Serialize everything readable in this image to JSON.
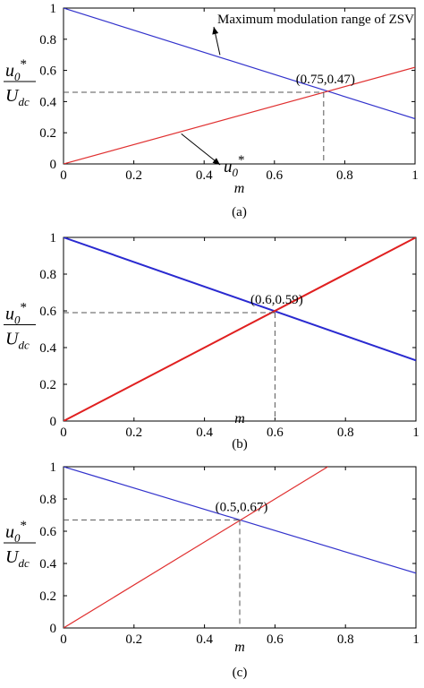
{
  "chart_data": [
    {
      "type": "line",
      "panel": "(a)",
      "xlabel": "m",
      "ylabel": {
        "numerator": "u",
        "numerator_sub": "0",
        "numerator_sup": "*",
        "denominator": "U",
        "denominator_sub": "dc"
      },
      "xlim": [
        0,
        1
      ],
      "ylim": [
        0,
        1
      ],
      "xticks": [
        "0",
        "0.2",
        "0.4",
        "0.6",
        "0.8",
        "1"
      ],
      "yticks": [
        "0",
        "0.2",
        "0.4",
        "0.6",
        "0.8",
        "1"
      ],
      "grid": false,
      "series": [
        {
          "name": "Maximum modulation range of ZSV",
          "color": "#3333cc",
          "x": [
            0,
            1
          ],
          "y": [
            1,
            0.29
          ]
        },
        {
          "name": "u0*",
          "color": "#e03030",
          "x": [
            0,
            1
          ],
          "y": [
            0,
            0.62
          ]
        }
      ],
      "intersection": {
        "label": "(0.75,0.47)",
        "x": 0.74,
        "y": 0.46
      },
      "annotations": [
        {
          "text": "Maximum modulation range of ZSV",
          "series": 0,
          "arrow_to_x": 0.44
        },
        {
          "text_main": "u",
          "text_sub": "0",
          "text_sup": "*",
          "series": 1,
          "arrow_to_x": 0.33
        }
      ]
    },
    {
      "type": "line",
      "panel": "(b)",
      "xlabel": "m",
      "ylabel": {
        "numerator": "u",
        "numerator_sub": "0",
        "numerator_sup": "*",
        "denominator": "U",
        "denominator_sub": "dc"
      },
      "xlim": [
        0,
        1
      ],
      "ylim": [
        0,
        1
      ],
      "xticks": [
        "0",
        "0.2",
        "0.4",
        "0.6",
        "0.8",
        "1"
      ],
      "yticks": [
        "0",
        "0.2",
        "0.4",
        "0.6",
        "0.8",
        "1"
      ],
      "grid": false,
      "series": [
        {
          "color": "#2a2ad0",
          "x": [
            0,
            1
          ],
          "y": [
            1,
            0.33
          ]
        },
        {
          "color": "#e02020",
          "x": [
            0,
            1
          ],
          "y": [
            0,
            1
          ]
        }
      ],
      "intersection": {
        "label": "(0.6,0.59)",
        "x": 0.6,
        "y": 0.59
      }
    },
    {
      "type": "line",
      "panel": "(c)",
      "xlabel": "m",
      "ylabel": {
        "numerator": "u",
        "numerator_sub": "0",
        "numerator_sup": "*",
        "denominator": "U",
        "denominator_sub": "dc"
      },
      "xlim": [
        0,
        1
      ],
      "ylim": [
        0,
        1
      ],
      "xticks": [
        "0",
        "0.2",
        "0.4",
        "0.6",
        "0.8",
        "1"
      ],
      "yticks": [
        "0",
        "0.2",
        "0.4",
        "0.6",
        "0.8",
        "1"
      ],
      "grid": false,
      "series": [
        {
          "color": "#3333cc",
          "x": [
            0,
            1
          ],
          "y": [
            1,
            0.34
          ]
        },
        {
          "color": "#e03030",
          "x": [
            0,
            0.75
          ],
          "y": [
            0,
            1
          ]
        }
      ],
      "intersection": {
        "label": "(0.5,0.67)",
        "x": 0.5,
        "y": 0.67
      }
    }
  ]
}
